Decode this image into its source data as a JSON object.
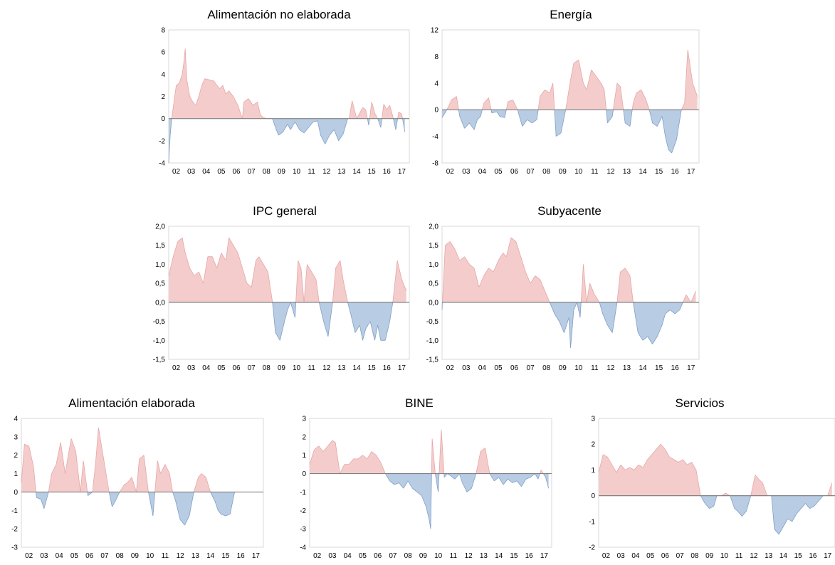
{
  "chart_data": [
    {
      "type": "area",
      "title": "Alimentación no elaborada",
      "ylim": [
        -4,
        8
      ],
      "yticks": [
        -4,
        -2,
        0,
        2,
        4,
        6,
        8
      ],
      "ytick_labels": [
        "-4",
        "-2",
        "0",
        "2",
        "4",
        "6",
        "8"
      ],
      "xtick_labels": [
        "02",
        "03",
        "04",
        "05",
        "06",
        "07",
        "08",
        "09",
        "10",
        "11",
        "12",
        "13",
        "14",
        "15",
        "16",
        "17"
      ],
      "positive_color": "#f4cccc",
      "negative_color": "#b8cce4",
      "x": [
        2002.0,
        2002.1,
        2002.2,
        2002.5,
        2002.7,
        2002.9,
        2003.0,
        2003.1,
        2003.2,
        2003.4,
        2003.6,
        2003.8,
        2004.0,
        2004.2,
        2004.4,
        2004.7,
        2005.0,
        2005.2,
        2005.4,
        2005.6,
        2005.8,
        2006.0,
        2006.3,
        2006.6,
        2006.9,
        2007.0,
        2007.3,
        2007.6,
        2007.9,
        2008.1,
        2008.3,
        2008.5,
        2008.7,
        2008.9,
        2009.1,
        2009.3,
        2009.6,
        2009.9,
        2010.1,
        2010.4,
        2010.7,
        2011.0,
        2011.3,
        2011.6,
        2011.9,
        2012.1,
        2012.4,
        2012.7,
        2013.0,
        2013.3,
        2013.6,
        2013.9,
        2014.0,
        2014.2,
        2014.5,
        2014.7,
        2014.9,
        2015.1,
        2015.3,
        2015.5,
        2015.7,
        2015.9,
        2016.1,
        2016.3,
        2016.5,
        2016.7,
        2016.9,
        2017.1,
        2017.3,
        2017.5,
        2017.7
      ],
      "values": [
        -4.0,
        -1.5,
        0.0,
        3.0,
        3.2,
        4.0,
        5.0,
        6.3,
        3.5,
        2.0,
        1.5,
        1.2,
        2.0,
        3.0,
        3.6,
        3.5,
        3.4,
        3.0,
        2.7,
        3.0,
        2.2,
        2.5,
        2.0,
        1.2,
        0.0,
        1.5,
        1.8,
        1.2,
        1.5,
        0.3,
        0.1,
        0.0,
        0.0,
        0.0,
        -0.8,
        -1.5,
        -1.2,
        -0.5,
        -1.0,
        -0.3,
        -1.0,
        -1.3,
        -0.8,
        -0.3,
        -0.2,
        -1.5,
        -2.3,
        -1.5,
        -1.0,
        -2.0,
        -1.4,
        0.0,
        0.0,
        1.6,
        0.0,
        0.5,
        1.0,
        0.8,
        -0.6,
        1.5,
        0.5,
        0.0,
        -0.8,
        1.3,
        0.8,
        1.2,
        0.2,
        -1.0,
        0.6,
        0.4,
        -1.2
      ]
    },
    {
      "type": "area",
      "title": "Energía",
      "ylim": [
        -8,
        12
      ],
      "yticks": [
        -8,
        -4,
        0,
        4,
        8,
        12
      ],
      "ytick_labels": [
        "-8",
        "-4",
        "0",
        "4",
        "8",
        "12"
      ],
      "xtick_labels": [
        "02",
        "03",
        "04",
        "05",
        "06",
        "07",
        "08",
        "09",
        "10",
        "11",
        "12",
        "13",
        "14",
        "15",
        "16",
        "17"
      ],
      "positive_color": "#f4cccc",
      "negative_color": "#b8cce4",
      "x": [
        2002.0,
        2002.3,
        2002.6,
        2002.9,
        2003.1,
        2003.4,
        2003.7,
        2004.0,
        2004.2,
        2004.4,
        2004.6,
        2004.9,
        2005.1,
        2005.4,
        2005.6,
        2005.9,
        2006.1,
        2006.4,
        2006.7,
        2007.0,
        2007.3,
        2007.6,
        2007.9,
        2008.1,
        2008.4,
        2008.7,
        2008.9,
        2009.1,
        2009.4,
        2009.7,
        2010.0,
        2010.2,
        2010.5,
        2010.8,
        2011.0,
        2011.3,
        2011.6,
        2011.9,
        2012.1,
        2012.3,
        2012.6,
        2012.9,
        2013.1,
        2013.4,
        2013.7,
        2013.9,
        2014.1,
        2014.4,
        2014.7,
        2014.9,
        2015.1,
        2015.4,
        2015.7,
        2015.9,
        2016.1,
        2016.3,
        2016.6,
        2016.9,
        2017.1,
        2017.3,
        2017.6,
        2017.9
      ],
      "values": [
        -1.2,
        0.0,
        1.5,
        2.0,
        -1.0,
        -2.8,
        -2.0,
        -3.0,
        -1.5,
        -1.0,
        1.0,
        1.8,
        -0.5,
        -0.3,
        -1.0,
        -1.2,
        1.2,
        1.5,
        0.0,
        -2.5,
        -1.5,
        -2.0,
        -1.5,
        2.0,
        3.0,
        2.5,
        4.0,
        -4.0,
        -3.5,
        0.0,
        4.5,
        7.0,
        7.5,
        4.0,
        3.0,
        6.0,
        5.0,
        4.0,
        3.0,
        -2.0,
        -1.0,
        4.0,
        3.5,
        -2.0,
        -2.5,
        1.0,
        2.5,
        3.0,
        1.5,
        0.0,
        -2.0,
        -2.5,
        -1.0,
        -4.0,
        -6.0,
        -6.5,
        -4.5,
        0.0,
        1.0,
        9.0,
        4.0,
        2.0
      ]
    },
    {
      "type": "area",
      "title": "IPC general",
      "ylim": [
        -1.5,
        2.0
      ],
      "yticks": [
        -1.5,
        -1.0,
        -0.5,
        0.0,
        0.5,
        1.0,
        1.5,
        2.0
      ],
      "ytick_labels": [
        "-1,5",
        "-1,0",
        "-0,5",
        "0,0",
        "0,5",
        "1,0",
        "1,5",
        "2,0"
      ],
      "xtick_labels": [
        "02",
        "03",
        "04",
        "05",
        "06",
        "07",
        "08",
        "09",
        "10",
        "11",
        "12",
        "13",
        "14",
        "15",
        "16",
        "17"
      ],
      "positive_color": "#f4cccc",
      "negative_color": "#b8cce4",
      "x": [
        2002.0,
        2002.3,
        2002.6,
        2002.9,
        2003.1,
        2003.4,
        2003.7,
        2004.0,
        2004.3,
        2004.6,
        2004.9,
        2005.2,
        2005.5,
        2005.8,
        2006.0,
        2006.3,
        2006.6,
        2006.9,
        2007.2,
        2007.5,
        2007.8,
        2008.0,
        2008.3,
        2008.6,
        2008.9,
        2009.1,
        2009.4,
        2009.7,
        2009.9,
        2010.1,
        2010.4,
        2010.6,
        2010.8,
        2011.0,
        2011.2,
        2011.5,
        2011.8,
        2012.0,
        2012.3,
        2012.6,
        2012.9,
        2013.1,
        2013.4,
        2013.6,
        2013.9,
        2014.1,
        2014.4,
        2014.7,
        2014.9,
        2015.1,
        2015.4,
        2015.7,
        2015.9,
        2016.1,
        2016.4,
        2016.7,
        2016.9,
        2017.2,
        2017.5,
        2017.8
      ],
      "values": [
        0.7,
        1.2,
        1.6,
        1.7,
        1.3,
        0.9,
        0.7,
        0.8,
        0.5,
        1.2,
        1.2,
        0.9,
        1.3,
        1.1,
        1.7,
        1.5,
        1.3,
        0.9,
        0.5,
        0.4,
        1.1,
        1.2,
        1.0,
        0.8,
        0.0,
        -0.8,
        -1.0,
        -0.5,
        -0.2,
        0.0,
        -0.4,
        1.1,
        0.9,
        0.0,
        1.0,
        0.8,
        0.6,
        0.0,
        -0.5,
        -0.9,
        0.0,
        0.9,
        1.1,
        0.6,
        0.0,
        -0.3,
        -0.8,
        -0.6,
        -1.0,
        -0.7,
        -0.5,
        -1.0,
        -0.6,
        -1.0,
        -1.0,
        -0.5,
        0.0,
        1.1,
        0.6,
        0.3
      ]
    },
    {
      "type": "area",
      "title": "Subyacente",
      "ylim": [
        -1.5,
        2.0
      ],
      "yticks": [
        -1.5,
        -1.0,
        -0.5,
        0.0,
        0.5,
        1.0,
        1.5,
        2.0
      ],
      "ytick_labels": [
        "-1,5",
        "-1,0",
        "-0,5",
        "0,0",
        "0,5",
        "1,0",
        "1,5",
        "2,0"
      ],
      "xtick_labels": [
        "02",
        "03",
        "04",
        "05",
        "06",
        "07",
        "08",
        "09",
        "10",
        "11",
        "12",
        "13",
        "14",
        "15",
        "16",
        "17"
      ],
      "positive_color": "#f4cccc",
      "negative_color": "#b8cce4",
      "x": [
        2002.0,
        2002.2,
        2002.5,
        2002.8,
        2003.1,
        2003.4,
        2003.7,
        2004.0,
        2004.3,
        2004.6,
        2004.9,
        2005.2,
        2005.5,
        2005.8,
        2006.0,
        2006.3,
        2006.6,
        2006.9,
        2007.2,
        2007.5,
        2007.8,
        2008.1,
        2008.4,
        2008.7,
        2009.0,
        2009.3,
        2009.6,
        2009.9,
        2010.0,
        2010.2,
        2010.4,
        2010.6,
        2010.8,
        2011.0,
        2011.2,
        2011.5,
        2011.8,
        2012.0,
        2012.3,
        2012.6,
        2012.9,
        2013.1,
        2013.4,
        2013.7,
        2013.9,
        2014.2,
        2014.5,
        2014.8,
        2015.1,
        2015.4,
        2015.7,
        2015.9,
        2016.2,
        2016.5,
        2016.8,
        2017.0,
        2017.2,
        2017.5,
        2017.8
      ],
      "values": [
        -0.2,
        1.5,
        1.6,
        1.4,
        1.1,
        1.2,
        1.0,
        0.9,
        0.4,
        0.7,
        0.9,
        0.8,
        1.1,
        1.3,
        1.2,
        1.7,
        1.6,
        1.2,
        0.8,
        0.5,
        0.7,
        0.6,
        0.3,
        0.0,
        -0.3,
        -0.5,
        -0.8,
        -0.4,
        -1.2,
        -0.2,
        0.0,
        -0.4,
        1.0,
        0.0,
        0.5,
        0.2,
        0.0,
        -0.3,
        -0.6,
        -0.8,
        0.0,
        0.8,
        0.9,
        0.7,
        0.0,
        -0.8,
        -1.0,
        -0.9,
        -1.1,
        -0.9,
        -0.6,
        -0.3,
        -0.2,
        -0.3,
        -0.2,
        0.0,
        0.2,
        0.0,
        0.3
      ]
    },
    {
      "type": "area",
      "title": "Alimentación elaborada",
      "ylim": [
        -3,
        4
      ],
      "yticks": [
        -3,
        -2,
        -1,
        0,
        1,
        2,
        3,
        4
      ],
      "ytick_labels": [
        "-3",
        "-2",
        "-1",
        "0",
        "1",
        "2",
        "3",
        "4"
      ],
      "xtick_labels": [
        "02",
        "03",
        "04",
        "05",
        "06",
        "07",
        "08",
        "09",
        "10",
        "11",
        "12",
        "13",
        "14",
        "15",
        "16",
        "17"
      ],
      "positive_color": "#f4cccc",
      "negative_color": "#b8cce4",
      "x": [
        2002.0,
        2002.2,
        2002.5,
        2002.8,
        2003.0,
        2003.3,
        2003.5,
        2003.8,
        2004.0,
        2004.3,
        2004.6,
        2004.9,
        2005.1,
        2005.3,
        2005.6,
        2005.9,
        2006.1,
        2006.4,
        2006.7,
        2006.9,
        2007.1,
        2007.3,
        2007.5,
        2007.8,
        2008.0,
        2008.2,
        2008.5,
        2008.8,
        2009.0,
        2009.3,
        2009.6,
        2009.8,
        2010.1,
        2010.4,
        2010.7,
        2011.0,
        2011.2,
        2011.5,
        2011.8,
        2012.0,
        2012.2,
        2012.5,
        2012.8,
        2013.1,
        2013.4,
        2013.7,
        2013.9,
        2014.2,
        2014.5,
        2014.8,
        2015.0,
        2015.2,
        2015.5,
        2015.8,
        2016.1,
        2016.4,
        2016.7,
        2016.9,
        2017.2,
        2017.5,
        2017.8
      ],
      "values": [
        0.5,
        2.6,
        2.5,
        1.4,
        -0.3,
        -0.4,
        -0.9,
        0.0,
        1.0,
        1.5,
        2.7,
        1.0,
        2.0,
        2.9,
        2.2,
        0.0,
        1.7,
        -0.2,
        0.0,
        1.5,
        3.5,
        2.5,
        1.5,
        0.0,
        -0.8,
        -0.5,
        0.0,
        0.4,
        0.5,
        0.8,
        0.0,
        1.8,
        2.0,
        0.0,
        -1.3,
        1.7,
        1.0,
        1.5,
        1.0,
        0.0,
        -0.5,
        -1.5,
        -1.8,
        -1.3,
        0.0,
        0.8,
        1.0,
        0.8,
        0.0,
        -0.5,
        -1.0,
        -1.2,
        -1.3,
        -1.2,
        0.0,
        0.0,
        0.0,
        0.0,
        0.0,
        0.0,
        0.0
      ]
    },
    {
      "type": "area",
      "title": "BINE",
      "ylim": [
        -4,
        3
      ],
      "yticks": [
        -4,
        -3,
        -2,
        -1,
        0,
        1,
        2,
        3
      ],
      "ytick_labels": [
        "-4",
        "-3",
        "-2",
        "-1",
        "0",
        "1",
        "2",
        "3"
      ],
      "xtick_labels": [
        "02",
        "03",
        "04",
        "05",
        "06",
        "07",
        "08",
        "09",
        "10",
        "11",
        "12",
        "13",
        "14",
        "15",
        "16",
        "17"
      ],
      "positive_color": "#f4cccc",
      "negative_color": "#b8cce4",
      "x": [
        2002.0,
        2002.3,
        2002.6,
        2002.9,
        2003.2,
        2003.5,
        2003.7,
        2004.0,
        2004.3,
        2004.6,
        2004.9,
        2005.2,
        2005.5,
        2005.8,
        2006.1,
        2006.4,
        2006.7,
        2007.0,
        2007.3,
        2007.6,
        2007.9,
        2008.2,
        2008.5,
        2008.8,
        2009.1,
        2009.4,
        2009.7,
        2009.9,
        2010.0,
        2010.1,
        2010.3,
        2010.5,
        2010.7,
        2010.9,
        2011.1,
        2011.3,
        2011.6,
        2011.9,
        2012.1,
        2012.4,
        2012.7,
        2013.0,
        2013.3,
        2013.6,
        2013.9,
        2014.2,
        2014.5,
        2014.8,
        2015.1,
        2015.4,
        2015.7,
        2016.0,
        2016.3,
        2016.6,
        2016.9,
        2017.1,
        2017.3,
        2017.6,
        2017.8
      ],
      "values": [
        0.5,
        1.3,
        1.5,
        1.2,
        1.5,
        1.8,
        1.7,
        0.0,
        0.5,
        0.5,
        0.8,
        0.8,
        1.0,
        0.8,
        1.2,
        1.0,
        0.6,
        0.0,
        -0.4,
        -0.6,
        -0.5,
        -0.8,
        -0.4,
        -0.8,
        -1.0,
        -1.2,
        -1.8,
        -2.5,
        -3.0,
        1.9,
        0.0,
        -1.0,
        2.4,
        -0.2,
        0.0,
        -0.1,
        -0.3,
        0.0,
        -0.5,
        -1.0,
        -0.8,
        0.0,
        1.2,
        1.4,
        0.0,
        -0.4,
        -0.2,
        -0.6,
        -0.3,
        -0.5,
        -0.4,
        -0.7,
        -0.3,
        -0.2,
        0.0,
        -0.3,
        0.2,
        -0.2,
        -0.8
      ]
    },
    {
      "type": "area",
      "title": "Servicios",
      "ylim": [
        -2,
        3
      ],
      "yticks": [
        -2,
        -1,
        0,
        1,
        2,
        3
      ],
      "ytick_labels": [
        "-2",
        "-1",
        "0",
        "1",
        "2",
        "3"
      ],
      "xtick_labels": [
        "02",
        "03",
        "04",
        "05",
        "06",
        "07",
        "08",
        "09",
        "10",
        "11",
        "12",
        "13",
        "14",
        "15",
        "16",
        "17"
      ],
      "positive_color": "#f4cccc",
      "negative_color": "#b8cce4",
      "x": [
        2002.0,
        2002.3,
        2002.6,
        2002.9,
        2003.2,
        2003.5,
        2003.8,
        2004.1,
        2004.4,
        2004.7,
        2005.0,
        2005.3,
        2005.6,
        2005.9,
        2006.2,
        2006.5,
        2006.8,
        2007.1,
        2007.4,
        2007.7,
        2008.0,
        2008.3,
        2008.6,
        2008.9,
        2009.2,
        2009.5,
        2009.8,
        2010.0,
        2010.3,
        2010.6,
        2010.9,
        2011.2,
        2011.4,
        2011.7,
        2012.0,
        2012.3,
        2012.6,
        2012.9,
        2013.1,
        2013.4,
        2013.7,
        2013.9,
        2014.2,
        2014.5,
        2014.8,
        2015.1,
        2015.4,
        2015.7,
        2016.0,
        2016.3,
        2016.6,
        2016.9,
        2017.2,
        2017.5,
        2017.8
      ],
      "values": [
        0.9,
        1.6,
        1.5,
        1.2,
        0.9,
        1.2,
        1.0,
        1.1,
        1.0,
        1.2,
        1.1,
        1.4,
        1.6,
        1.8,
        2.0,
        1.8,
        1.5,
        1.4,
        1.3,
        1.4,
        1.2,
        1.3,
        1.0,
        0.0,
        -0.3,
        -0.5,
        -0.4,
        0.0,
        0.0,
        0.1,
        0.0,
        -0.5,
        -0.6,
        -0.8,
        -0.6,
        0.0,
        0.8,
        0.6,
        0.5,
        0.0,
        0.0,
        -1.3,
        -1.5,
        -1.2,
        -0.9,
        -1.0,
        -0.7,
        -0.5,
        -0.3,
        -0.5,
        -0.4,
        -0.2,
        0.0,
        0.0,
        0.5
      ]
    }
  ]
}
